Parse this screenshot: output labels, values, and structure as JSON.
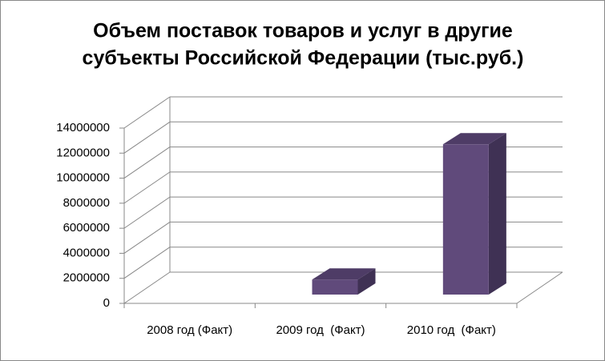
{
  "chart_data": {
    "type": "bar3d",
    "title": [
      "Объем поставок товаров и услуг в другие",
      "субъекты Российской Федерации (тыс.руб.)"
    ],
    "categories": [
      "2008 год (Факт)",
      "2009 год  (Факт)",
      "2010 год  (Факт)"
    ],
    "values": [
      0,
      1200000,
      12000000
    ],
    "color": "#604a7b",
    "ylim": [
      0,
      14000000
    ],
    "yticks": [
      0,
      2000000,
      4000000,
      6000000,
      8000000,
      10000000,
      12000000,
      14000000
    ],
    "grid": true
  }
}
